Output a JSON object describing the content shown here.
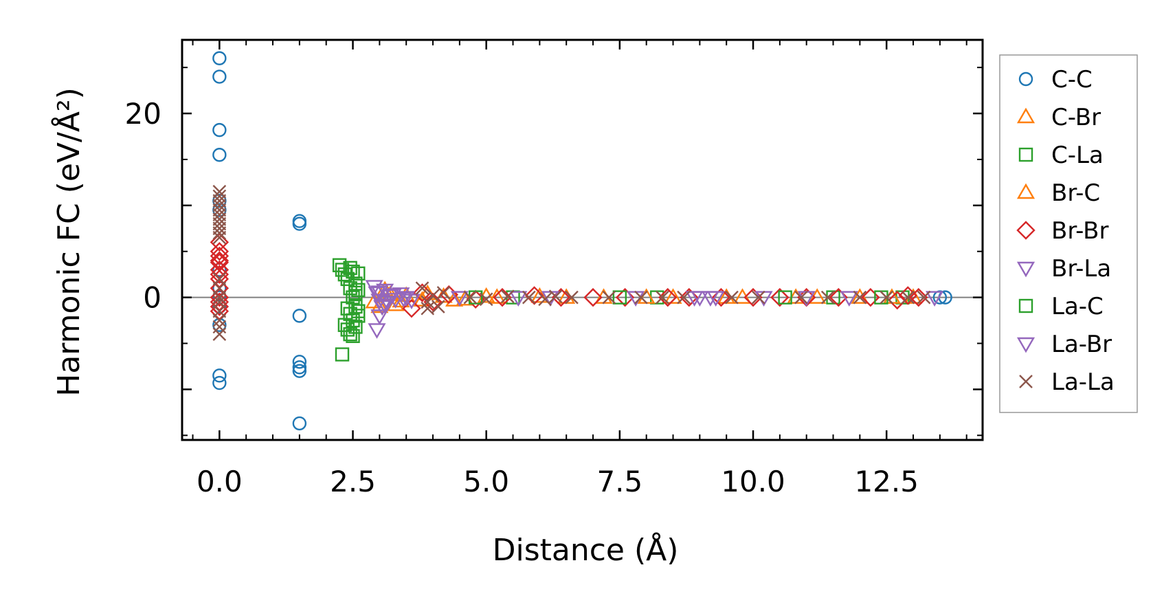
{
  "chart_data": {
    "type": "scatter",
    "title": "",
    "xlabel": "Distance (Å)",
    "ylabel": "Harmonic FC (eV/Å²)",
    "xlim": [
      -0.7,
      14.3
    ],
    "ylim": [
      -15.5,
      28
    ],
    "x_ticks": [
      0.0,
      2.5,
      5.0,
      7.5,
      10.0,
      12.5
    ],
    "x_tick_labels": [
      "0.0",
      "2.5",
      "5.0",
      "7.5",
      "10.0",
      "12.5"
    ],
    "y_ticks": [
      0,
      20
    ],
    "y_tick_labels": [
      "0",
      "20"
    ],
    "zero_line": 0,
    "grid": false,
    "legend_position": "outside-right",
    "series": [
      {
        "name": "C-C",
        "marker": "circle",
        "color": "#1f77b4",
        "points": [
          [
            0,
            26
          ],
          [
            0,
            24
          ],
          [
            0,
            18.2
          ],
          [
            0,
            15.5
          ],
          [
            0,
            10.5
          ],
          [
            0,
            9.5
          ],
          [
            0,
            3
          ],
          [
            0,
            1
          ],
          [
            0,
            0
          ],
          [
            0,
            -1
          ],
          [
            0,
            -3
          ],
          [
            0,
            -8.5
          ],
          [
            0,
            -9.3
          ],
          [
            1.5,
            8.3
          ],
          [
            1.5,
            8
          ],
          [
            1.5,
            -2
          ],
          [
            1.5,
            -7
          ],
          [
            1.5,
            -7.6
          ],
          [
            1.5,
            -8
          ],
          [
            1.5,
            -13.7
          ],
          [
            13.5,
            0
          ],
          [
            13.6,
            0
          ]
        ]
      },
      {
        "name": "C-Br",
        "marker": "triangle-up",
        "color": "#ff7f0e",
        "points": [
          [
            2.9,
            -0.5
          ],
          [
            3.0,
            -1.0
          ],
          [
            3.2,
            0.3
          ],
          [
            3.3,
            -0.8
          ],
          [
            3.5,
            0.2
          ],
          [
            3.8,
            -0.3
          ],
          [
            4.2,
            0.1
          ],
          [
            4.6,
            -0.2
          ],
          [
            5.2,
            0
          ],
          [
            6.0,
            0.1
          ],
          [
            7.2,
            0
          ],
          [
            8.5,
            0
          ],
          [
            9.5,
            0
          ],
          [
            10.8,
            0
          ],
          [
            12.0,
            0
          ],
          [
            13.0,
            0
          ]
        ]
      },
      {
        "name": "C-La",
        "marker": "square",
        "color": "#2ca02c",
        "points": [
          [
            2.25,
            3.5
          ],
          [
            2.3,
            3.0
          ],
          [
            2.35,
            2.5
          ],
          [
            2.4,
            2.0
          ],
          [
            2.45,
            1.0
          ],
          [
            2.5,
            0
          ],
          [
            2.55,
            -1.0
          ],
          [
            2.6,
            -2.0
          ],
          [
            2.35,
            -3.0
          ],
          [
            2.4,
            -3.5
          ],
          [
            2.45,
            -4.0
          ],
          [
            2.5,
            -4.2
          ],
          [
            2.3,
            -6.2
          ],
          [
            2.55,
            1.5
          ],
          [
            2.6,
            2.6
          ],
          [
            2.45,
            3.2
          ],
          [
            2.5,
            -2.5
          ],
          [
            2.6,
            -1.5
          ],
          [
            2.55,
            0.5
          ],
          [
            2.4,
            -1.2
          ],
          [
            5.5,
            0
          ],
          [
            8.2,
            0
          ],
          [
            11.5,
            0
          ],
          [
            12.8,
            0
          ]
        ]
      },
      {
        "name": "Br-C",
        "marker": "triangle-up",
        "color": "#ff7f0e",
        "points": [
          [
            3.1,
            0.8
          ],
          [
            3.4,
            -0.4
          ],
          [
            3.9,
            0.4
          ],
          [
            4.4,
            -0.3
          ],
          [
            5.0,
            0.1
          ],
          [
            6.5,
            0
          ],
          [
            8.0,
            0
          ],
          [
            9.8,
            0
          ],
          [
            11.2,
            0
          ],
          [
            12.6,
            0
          ]
        ]
      },
      {
        "name": "Br-Br",
        "marker": "diamond",
        "color": "#d62728",
        "points": [
          [
            0,
            6
          ],
          [
            0,
            4.5
          ],
          [
            0,
            3.8
          ],
          [
            0,
            3
          ],
          [
            0,
            2
          ],
          [
            0,
            1
          ],
          [
            0,
            0
          ],
          [
            0,
            -0.5
          ],
          [
            0,
            -1
          ],
          [
            0,
            -1.5
          ],
          [
            0,
            5
          ],
          [
            0,
            4
          ],
          [
            0,
            2.5
          ],
          [
            3.6,
            -1.2
          ],
          [
            3.8,
            0.5
          ],
          [
            4.0,
            -0.5
          ],
          [
            4.3,
            0.3
          ],
          [
            4.8,
            -0.2
          ],
          [
            5.3,
            0
          ],
          [
            5.9,
            0.2
          ],
          [
            6.4,
            0
          ],
          [
            7.0,
            0
          ],
          [
            7.6,
            0
          ],
          [
            8.4,
            0
          ],
          [
            8.8,
            0
          ],
          [
            9.4,
            0
          ],
          [
            10.0,
            0
          ],
          [
            10.5,
            0
          ],
          [
            11.0,
            0
          ],
          [
            11.6,
            0
          ],
          [
            12.2,
            0
          ],
          [
            12.7,
            -0.3
          ],
          [
            12.9,
            0.2
          ],
          [
            13.1,
            0
          ]
        ]
      },
      {
        "name": "Br-La",
        "marker": "triangle-down",
        "color": "#9467bd",
        "points": [
          [
            2.9,
            1.2
          ],
          [
            2.95,
            0.5
          ],
          [
            3.0,
            -0.3
          ],
          [
            3.05,
            -1.0
          ],
          [
            2.95,
            -3.5
          ],
          [
            3.1,
            0.8
          ],
          [
            3.15,
            -0.5
          ],
          [
            3.2,
            0.2
          ],
          [
            3.3,
            -0.2
          ],
          [
            3.4,
            0.4
          ],
          [
            3.5,
            0
          ],
          [
            3.6,
            -0.3
          ],
          [
            3.0,
            -2.0
          ],
          [
            4.5,
            0
          ],
          [
            6.2,
            0
          ],
          [
            7.8,
            0
          ],
          [
            9.0,
            0
          ],
          [
            9.2,
            0
          ],
          [
            10.2,
            0
          ],
          [
            11.8,
            0
          ],
          [
            13.4,
            0
          ]
        ]
      },
      {
        "name": "La-C",
        "marker": "square",
        "color": "#2ca02c",
        "points": [
          [
            2.5,
            2.8
          ],
          [
            2.45,
            -1.8
          ],
          [
            2.55,
            -3.2
          ],
          [
            2.6,
            0.8
          ],
          [
            4.8,
            0
          ],
          [
            7.5,
            0
          ],
          [
            10.6,
            0
          ],
          [
            12.4,
            0
          ]
        ]
      },
      {
        "name": "La-Br",
        "marker": "triangle-down",
        "color": "#9467bd",
        "points": [
          [
            3.0,
            0.6
          ],
          [
            3.1,
            -0.8
          ],
          [
            3.25,
            0.3
          ],
          [
            3.45,
            -0.1
          ],
          [
            5.6,
            0
          ],
          [
            8.9,
            0
          ],
          [
            9.3,
            0
          ],
          [
            11.0,
            0
          ]
        ]
      },
      {
        "name": "La-La",
        "marker": "x",
        "color": "#8c564b",
        "points": [
          [
            0,
            11.5
          ],
          [
            0,
            11
          ],
          [
            0,
            10.5
          ],
          [
            0,
            10
          ],
          [
            0,
            9.5
          ],
          [
            0,
            9
          ],
          [
            0,
            8.5
          ],
          [
            0,
            8
          ],
          [
            0,
            7.5
          ],
          [
            0,
            7
          ],
          [
            0,
            6.5
          ],
          [
            0,
            2
          ],
          [
            0,
            1
          ],
          [
            0,
            0
          ],
          [
            0,
            -0.5
          ],
          [
            0,
            -1.5
          ],
          [
            0,
            -2.5
          ],
          [
            0,
            -3.2
          ],
          [
            0,
            -4.0
          ],
          [
            3.8,
            1.0
          ],
          [
            3.9,
            -0.5
          ],
          [
            4.0,
            0.2
          ],
          [
            4.1,
            -1.0
          ],
          [
            4.2,
            0.5
          ],
          [
            3.9,
            -1.2
          ],
          [
            4.7,
            0
          ],
          [
            5.0,
            -0.2
          ],
          [
            5.4,
            0.1
          ],
          [
            5.8,
            0
          ],
          [
            6.1,
            -0.2
          ],
          [
            6.3,
            0.1
          ],
          [
            6.6,
            0
          ],
          [
            7.3,
            0
          ],
          [
            7.9,
            0
          ],
          [
            8.3,
            0
          ],
          [
            8.7,
            0
          ],
          [
            9.6,
            0
          ],
          [
            10.1,
            0
          ],
          [
            10.9,
            0
          ],
          [
            11.4,
            0
          ],
          [
            12.0,
            0
          ],
          [
            12.5,
            0
          ],
          [
            12.9,
            0
          ],
          [
            13.2,
            0
          ]
        ]
      }
    ]
  }
}
